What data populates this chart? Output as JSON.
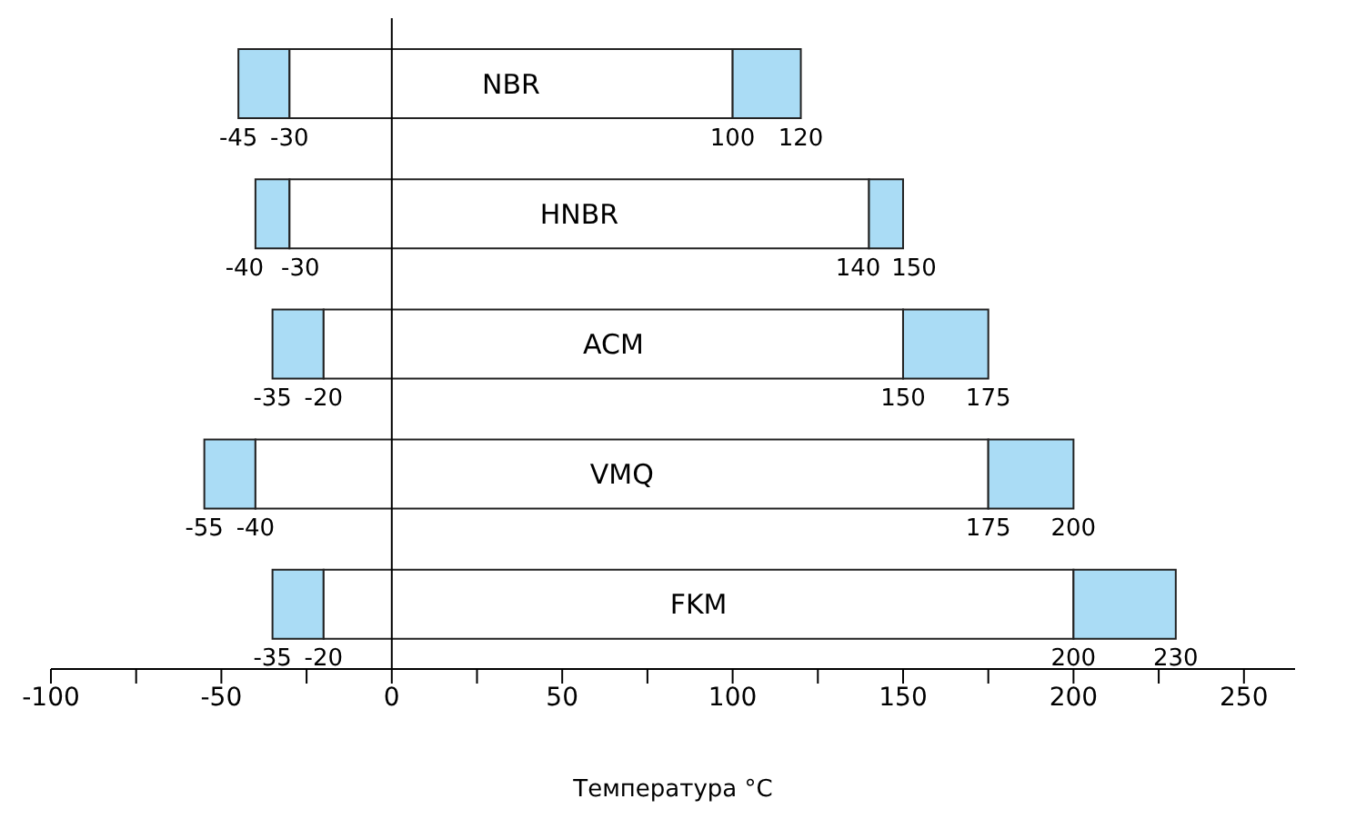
{
  "chart_data": {
    "type": "bar",
    "orientation": "horizontal",
    "xlabel": "Температура °C",
    "categories": [
      "NBR",
      "HNBR",
      "ACM",
      "VMQ",
      "FKM"
    ],
    "series": [
      {
        "color": "#aadcf5",
        "base": [
          -45,
          -40,
          -35,
          -55,
          -35
        ],
        "values": [
          15,
          10,
          15,
          15,
          15
        ]
      },
      {
        "color": "#ffffff",
        "base": [
          -30,
          -30,
          -20,
          -40,
          -20
        ],
        "values": [
          130,
          170,
          170,
          215,
          220
        ]
      },
      {
        "color": "#aadcf5",
        "base": [
          100,
          140,
          150,
          175,
          200
        ],
        "values": [
          20,
          10,
          25,
          25,
          30
        ]
      }
    ],
    "xlim": [
      -100,
      265
    ],
    "xticks": [
      -100,
      {
        "value": -75,
        "label": null
      },
      -50,
      {
        "value": -25,
        "label": null
      },
      0,
      {
        "value": 25,
        "label": null
      },
      50,
      {
        "value": 75,
        "label": null
      },
      100,
      {
        "value": 125,
        "label": null
      },
      150,
      {
        "value": 175,
        "label": null
      },
      200,
      {
        "value": 225,
        "label": null
      },
      250
    ],
    "ref_lines": [
      {
        "axis": "x",
        "value": 0,
        "color": "#000000"
      }
    ],
    "annotations": [
      {
        "text": "-45",
        "x": -45,
        "y": "NBR"
      },
      {
        "text": "-30",
        "x": -30,
        "y": "NBR"
      },
      {
        "text": "100",
        "x": 100,
        "y": "NBR"
      },
      {
        "text": "120",
        "x": 120,
        "y": "NBR"
      },
      {
        "text": "-40",
        "x": -40,
        "y": "HNBR"
      },
      {
        "text": "-30",
        "x": -30,
        "y": "HNBR"
      },
      {
        "text": "140",
        "x": 140,
        "y": "HNBR"
      },
      {
        "text": "150",
        "x": 150,
        "y": "HNBR"
      },
      {
        "text": "-35",
        "x": -35,
        "y": "ACM"
      },
      {
        "text": "-20",
        "x": -20,
        "y": "ACM"
      },
      {
        "text": "150",
        "x": 150,
        "y": "ACM"
      },
      {
        "text": "175",
        "x": 175,
        "y": "ACM"
      },
      {
        "text": "-55",
        "x": -55,
        "y": "VMQ"
      },
      {
        "text": "-40",
        "x": -40,
        "y": "VMQ"
      },
      {
        "text": "175",
        "x": 175,
        "y": "VMQ"
      },
      {
        "text": "200",
        "x": 200,
        "y": "VMQ"
      },
      {
        "text": "-35",
        "x": -35,
        "y": "FKM"
      },
      {
        "text": "-20",
        "x": -20,
        "y": "FKM"
      },
      {
        "text": "200",
        "x": 200,
        "y": "FKM"
      },
      {
        "text": "230",
        "x": 230,
        "y": "FKM"
      }
    ]
  }
}
